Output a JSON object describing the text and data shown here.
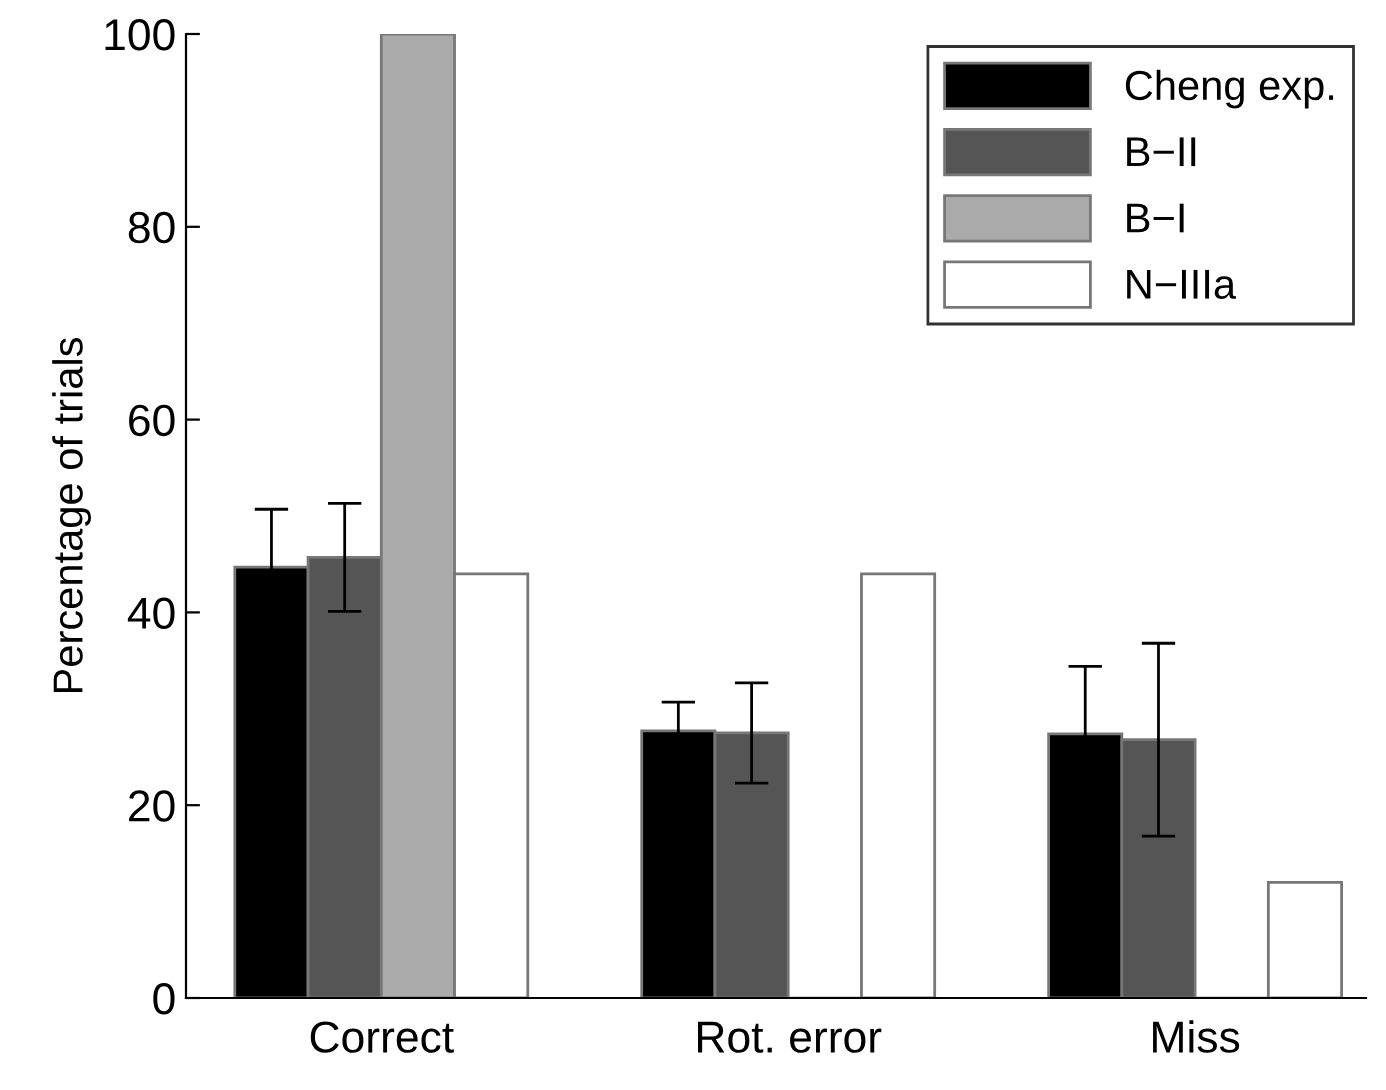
{
  "chart_data": {
    "type": "bar",
    "ylabel": "Percentage of trials",
    "categories": [
      "Correct",
      "Rot. error",
      "Miss"
    ],
    "series": [
      {
        "name": "Cheng exp.",
        "color": "#000000",
        "values": [
          44.7,
          27.7,
          27.4
        ],
        "errors": [
          6,
          3,
          7
        ]
      },
      {
        "name": "B−II",
        "color": "#555555",
        "values": [
          45.7,
          27.5,
          26.8
        ],
        "errors": [
          5.6,
          5.2,
          10
        ]
      },
      {
        "name": "B−I",
        "color": "#aaaaaa",
        "values": [
          100,
          0,
          0
        ]
      },
      {
        "name": "N−IIIa",
        "color": "#ffffff",
        "values": [
          44,
          44,
          12
        ]
      }
    ],
    "ylim": [
      0,
      100
    ],
    "yticks": [
      0,
      20,
      40,
      60,
      80,
      100
    ],
    "grid": false,
    "legend": "top right"
  }
}
